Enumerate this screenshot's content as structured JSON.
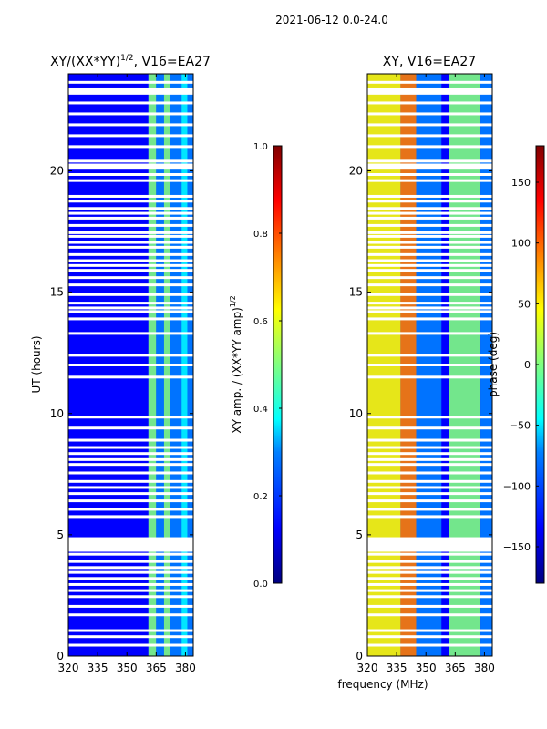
{
  "figure": {
    "suptitle": "2021-06-12 0.0-24.0",
    "xlabel": "frequency (MHz)",
    "ylabel": "UT (hours)"
  },
  "colors": {
    "background": "#ffffff",
    "axis": "#000000",
    "gap": "#ffffff",
    "jet": [
      "#000080",
      "#0000ff",
      "#0080ff",
      "#00ffff",
      "#80ff80",
      "#ffff00",
      "#ff8000",
      "#ff0000",
      "#800000"
    ]
  },
  "chart_data": [
    {
      "type": "heatmap",
      "panel": "amplitude-ratio",
      "title_main": "XY/(XX*YY)",
      "title_sup": "1/2",
      "title_rest": ", V16=EA27",
      "xlabel": "frequency (MHz)",
      "ylabel": "UT (hours)",
      "xlim": [
        320,
        384
      ],
      "ylim": [
        0,
        24
      ],
      "xticks": [
        320,
        335,
        350,
        365,
        380
      ],
      "yticks": [
        0,
        5,
        10,
        15,
        20
      ],
      "bands": [
        {
          "from": 320,
          "to": 361,
          "level": 0.12
        },
        {
          "from": 361,
          "to": 365,
          "level": 0.45
        },
        {
          "from": 365,
          "to": 369,
          "level": 0.28
        },
        {
          "from": 369,
          "to": 372,
          "level": 0.5
        },
        {
          "from": 372,
          "to": 378,
          "level": 0.3
        },
        {
          "from": 378,
          "to": 381,
          "level": 0.4
        },
        {
          "from": 381,
          "to": 384,
          "level": 0.2
        }
      ],
      "colorbar": {
        "label": "XY amp. / (XX*YY amp)",
        "label_sup": "1/2",
        "range": [
          0.0,
          1.0
        ],
        "ticks": [
          "0.0",
          "0.2",
          "0.4",
          "0.6",
          "0.8",
          "1.0"
        ]
      }
    },
    {
      "type": "heatmap",
      "panel": "phase",
      "title": "XY, V16=EA27",
      "xlabel": "frequency (MHz)",
      "ylim": [
        0,
        24
      ],
      "xlim": [
        320,
        384
      ],
      "xticks": [
        320,
        335,
        350,
        365,
        380
      ],
      "yticks": [
        0,
        5,
        10,
        15,
        20
      ],
      "bands": [
        {
          "from": 320,
          "to": 337,
          "level": 0.6
        },
        {
          "from": 337,
          "to": 345,
          "level": 0.75
        },
        {
          "from": 345,
          "to": 358,
          "level": 0.25
        },
        {
          "from": 358,
          "to": 362,
          "level": 0.15
        },
        {
          "from": 362,
          "to": 378,
          "level": 0.45
        },
        {
          "from": 378,
          "to": 384,
          "level": 0.2
        }
      ],
      "colorbar": {
        "label": "phase (deg)",
        "range": [
          -180,
          180
        ],
        "ticks": [
          "−150",
          "−100",
          "−50",
          "0",
          "50",
          "100",
          "150"
        ]
      }
    }
  ],
  "flagged_hours": [
    0.45,
    0.8,
    1.05,
    1.7,
    2.05,
    2.45,
    2.7,
    2.95,
    3.2,
    3.45,
    3.65,
    3.9,
    4.2,
    5.75,
    6.05,
    6.4,
    6.7,
    6.95,
    7.2,
    7.55,
    7.9,
    8.1,
    8.35,
    8.6,
    8.9,
    9.4,
    9.85,
    11.5,
    12.0,
    12.4,
    13.3,
    13.9,
    14.2,
    14.35,
    14.55,
    14.9,
    15.3,
    15.6,
    15.9,
    16.1,
    16.3,
    16.55,
    16.85,
    17.05,
    17.3,
    17.45,
    17.75,
    18.05,
    18.25,
    18.45,
    18.75,
    18.95,
    19.6,
    19.85,
    20.4,
    21.0,
    21.45,
    21.9,
    22.35,
    22.8,
    23.2,
    23.65
  ],
  "flagged_blocks": [
    {
      "from": 4.3,
      "to": 4.9
    },
    {
      "from": 20.05,
      "to": 20.3
    },
    {
      "from": 23.15,
      "to": 23.4
    }
  ]
}
